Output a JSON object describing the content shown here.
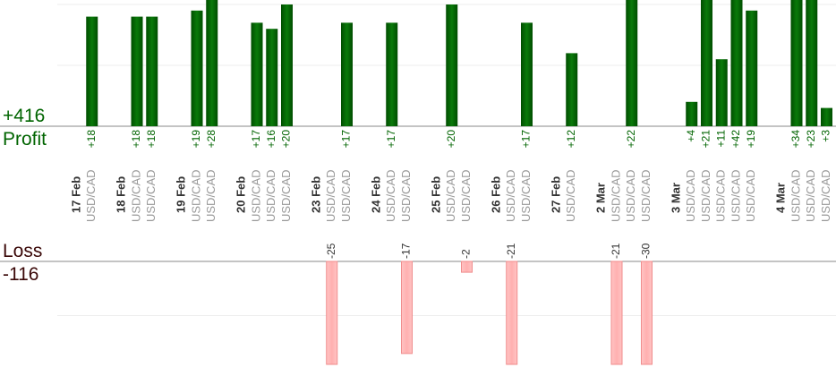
{
  "chart_data": {
    "type": "bar",
    "title": "",
    "profit_label": "Profit",
    "profit_total": "+416",
    "loss_label": "Loss",
    "loss_total": "-116",
    "colors": {
      "profit": "#006400",
      "loss": "#ffb0b0",
      "loss_border": "#f08c8c",
      "instrument": "#999999",
      "date": "#333333"
    },
    "profit_axis_gridlines": [
      10,
      20
    ],
    "loss_axis_gridlines": [
      10
    ],
    "groups": [
      {
        "date": "17 Feb",
        "trades": [
          {
            "symbol": "USD/CAD",
            "value": 18,
            "label": "+18"
          }
        ]
      },
      {
        "date": "18 Feb",
        "trades": [
          {
            "symbol": "USD/CAD",
            "value": 18,
            "label": "+18"
          },
          {
            "symbol": "USD/CAD",
            "value": 18,
            "label": "+18"
          }
        ]
      },
      {
        "date": "19 Feb",
        "trades": [
          {
            "symbol": "USD/CAD",
            "value": 19,
            "label": "+19"
          },
          {
            "symbol": "USD/CAD",
            "value": 28,
            "label": "+28"
          }
        ]
      },
      {
        "date": "20 Feb",
        "trades": [
          {
            "symbol": "USD/CAD",
            "value": 17,
            "label": "+17"
          },
          {
            "symbol": "USD/CAD",
            "value": 16,
            "label": "+16"
          },
          {
            "symbol": "USD/CAD",
            "value": 20,
            "label": "+20"
          }
        ]
      },
      {
        "date": "23 Feb",
        "trades": [
          {
            "symbol": "USD/CAD",
            "value": -25,
            "label": "-25"
          },
          {
            "symbol": "USD/CAD",
            "value": 17,
            "label": "+17"
          }
        ]
      },
      {
        "date": "24 Feb",
        "trades": [
          {
            "symbol": "USD/CAD",
            "value": 17,
            "label": "+17"
          },
          {
            "symbol": "USD/CAD",
            "value": -17,
            "label": "-17"
          }
        ]
      },
      {
        "date": "25 Feb",
        "trades": [
          {
            "symbol": "USD/CAD",
            "value": 20,
            "label": "+20"
          },
          {
            "symbol": "USD/CAD",
            "value": -2,
            "label": "-2"
          }
        ]
      },
      {
        "date": "26 Feb",
        "trades": [
          {
            "symbol": "USD/CAD",
            "value": -21,
            "label": "-21"
          },
          {
            "symbol": "USD/CAD",
            "value": 17,
            "label": "+17"
          }
        ]
      },
      {
        "date": "27 Feb",
        "trades": [
          {
            "symbol": "USD/CAD",
            "value": 12,
            "label": "+12"
          }
        ]
      },
      {
        "date": "2 Mar",
        "trades": [
          {
            "symbol": "USD/CAD",
            "value": -21,
            "label": "-21"
          },
          {
            "symbol": "USD/CAD",
            "value": 22,
            "label": "+22"
          },
          {
            "symbol": "USD/CAD",
            "value": -30,
            "label": "-30"
          }
        ]
      },
      {
        "date": "3 Mar",
        "trades": [
          {
            "symbol": "USD/CAD",
            "value": 4,
            "label": "+4"
          },
          {
            "symbol": "USD/CAD",
            "value": 21,
            "label": "+21"
          },
          {
            "symbol": "USD/CAD",
            "value": 11,
            "label": "+11"
          },
          {
            "symbol": "USD/CAD",
            "value": 42,
            "label": "+42"
          },
          {
            "symbol": "USD/CAD",
            "value": 19,
            "label": "+19"
          }
        ]
      },
      {
        "date": "4 Mar",
        "trades": [
          {
            "symbol": "USD/CAD",
            "value": 34,
            "label": "+34"
          },
          {
            "symbol": "USD/CAD",
            "value": 23,
            "label": "+23"
          },
          {
            "symbol": "USD/CAD",
            "value": 3,
            "label": "+3"
          }
        ]
      }
    ]
  }
}
